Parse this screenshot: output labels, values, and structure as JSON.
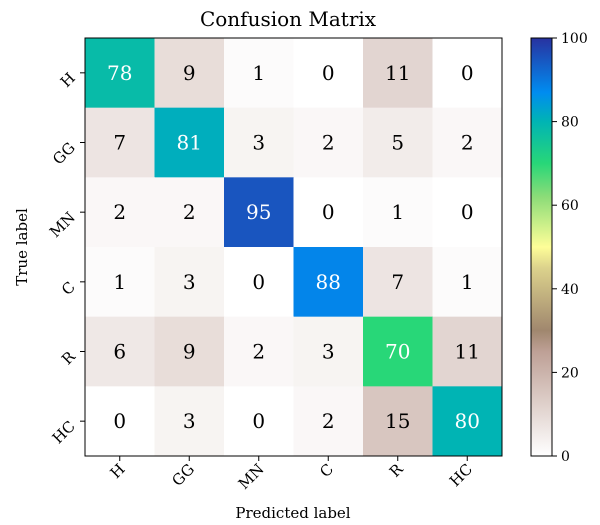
{
  "chart_data": {
    "type": "heatmap",
    "title": "Confusion Matrix",
    "xlabel": "Predicted label",
    "ylabel": "True label",
    "x_categories": [
      "H",
      "GG",
      "MN",
      "C",
      "R",
      "HC"
    ],
    "y_categories": [
      "H",
      "GG",
      "MN",
      "C",
      "R",
      "HC"
    ],
    "values": [
      [
        78,
        9,
        1,
        0,
        11,
        0
      ],
      [
        7,
        81,
        3,
        2,
        5,
        2
      ],
      [
        2,
        2,
        95,
        0,
        1,
        0
      ],
      [
        1,
        3,
        0,
        88,
        7,
        1
      ],
      [
        6,
        9,
        2,
        3,
        70,
        11
      ],
      [
        0,
        3,
        0,
        2,
        15,
        80
      ]
    ],
    "colorbar": {
      "range": [
        0,
        100
      ],
      "ticks": [
        0,
        20,
        40,
        60,
        80,
        100
      ],
      "colormap": "terrain_r"
    },
    "label_color_dark": "#000000",
    "label_color_light": "#ffffff"
  }
}
